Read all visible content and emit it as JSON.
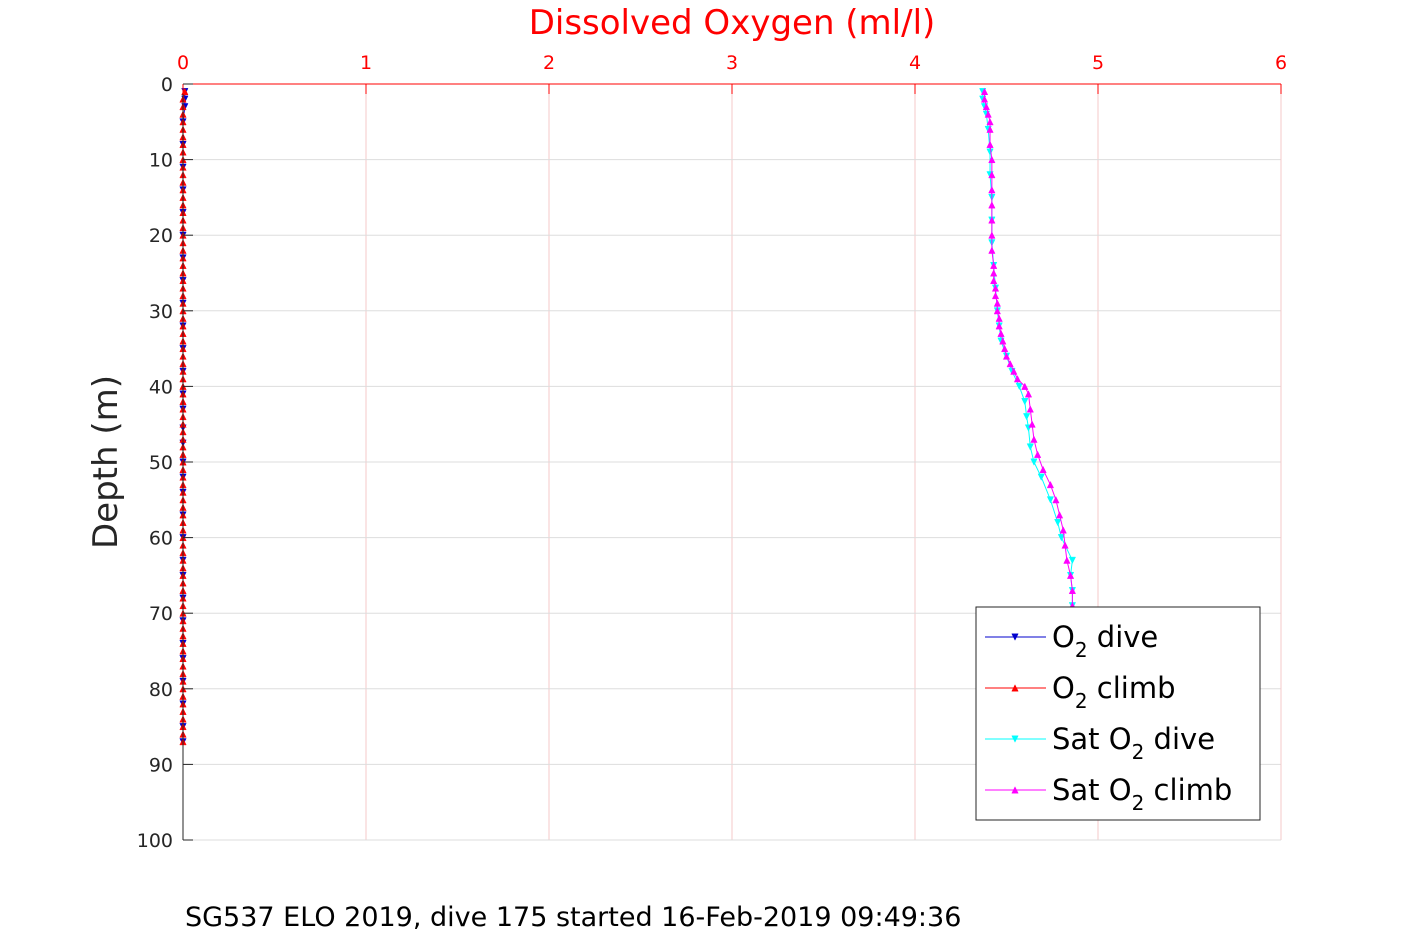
{
  "caption": "SG537 ELO 2019, dive 175 started 16-Feb-2019 09:49:36",
  "chart_data": {
    "type": "line",
    "title": "Dissolved Oxygen (ml/l)",
    "xlabel": "Dissolved Oxygen (ml/l)",
    "ylabel": "Depth (m)",
    "xlim": [
      0,
      6
    ],
    "ylim": [
      0,
      100
    ],
    "y_reversed": true,
    "x_axis_position": "top",
    "grid": true,
    "x_ticks": [
      "0",
      "1",
      "2",
      "3",
      "4",
      "5",
      "6"
    ],
    "y_ticks": [
      "0",
      "10",
      "20",
      "30",
      "40",
      "50",
      "60",
      "70",
      "80",
      "90",
      "100"
    ],
    "legend_position": "lower-right",
    "series": [
      {
        "name": "O2 dive",
        "legend": {
          "main": "O",
          "sub": "2",
          "rest": " dive"
        },
        "color": "#0000cd",
        "marker": "triangle-down",
        "points": [
          [
            0.01,
            1
          ],
          [
            0.01,
            2
          ],
          [
            0.01,
            3
          ],
          [
            0.0,
            5
          ],
          [
            0.0,
            8
          ],
          [
            0.0,
            11
          ],
          [
            0.0,
            14
          ],
          [
            0.0,
            17
          ],
          [
            0.0,
            20
          ],
          [
            0.0,
            23
          ],
          [
            0.0,
            26
          ],
          [
            0.0,
            29
          ],
          [
            0.0,
            32
          ],
          [
            0.0,
            35
          ],
          [
            0.0,
            38
          ],
          [
            0.0,
            41
          ],
          [
            0.0,
            43
          ],
          [
            0.0,
            45.5
          ],
          [
            0.0,
            47.5
          ],
          [
            0.0,
            50
          ],
          [
            0.0,
            52
          ],
          [
            0.0,
            54
          ],
          [
            0.0,
            57
          ],
          [
            0.0,
            60
          ],
          [
            0.0,
            63
          ],
          [
            0.0,
            65
          ],
          [
            0.0,
            68
          ],
          [
            0.0,
            71
          ],
          [
            0.0,
            74
          ],
          [
            0.0,
            76
          ],
          [
            0.0,
            79
          ],
          [
            0.0,
            82
          ],
          [
            0.0,
            85
          ],
          [
            0.0,
            87
          ]
        ]
      },
      {
        "name": "O2 climb",
        "legend": {
          "main": "O",
          "sub": "2",
          "rest": " climb"
        },
        "color": "#ff0000",
        "marker": "triangle-up",
        "points": [
          [
            0.0,
            87
          ],
          [
            0.0,
            86
          ],
          [
            0.0,
            85
          ],
          [
            0.0,
            84
          ],
          [
            0.0,
            83
          ],
          [
            0.0,
            82
          ],
          [
            0.0,
            81
          ],
          [
            0.0,
            80
          ],
          [
            0.0,
            79
          ],
          [
            0.0,
            78
          ],
          [
            0.0,
            77
          ],
          [
            0.0,
            76
          ],
          [
            0.0,
            75
          ],
          [
            0.0,
            74
          ],
          [
            0.0,
            73
          ],
          [
            0.0,
            72
          ],
          [
            0.0,
            71
          ],
          [
            0.0,
            70
          ],
          [
            0.0,
            69
          ],
          [
            0.0,
            68
          ],
          [
            0.0,
            67
          ],
          [
            0.0,
            66
          ],
          [
            0.0,
            65
          ],
          [
            0.0,
            64
          ],
          [
            0.0,
            63
          ],
          [
            0.0,
            62
          ],
          [
            0.0,
            61
          ],
          [
            0.0,
            60
          ],
          [
            0.0,
            59
          ],
          [
            0.0,
            58
          ],
          [
            0.0,
            57
          ],
          [
            0.0,
            56
          ],
          [
            0.0,
            55
          ],
          [
            0.0,
            54
          ],
          [
            0.0,
            53
          ],
          [
            0.0,
            52
          ],
          [
            0.0,
            51
          ],
          [
            0.0,
            50
          ],
          [
            0.0,
            49
          ],
          [
            0.0,
            48
          ],
          [
            0.0,
            47
          ],
          [
            0.0,
            46
          ],
          [
            0.0,
            45
          ],
          [
            0.0,
            44
          ],
          [
            0.0,
            43
          ],
          [
            0.0,
            42
          ],
          [
            0.0,
            41
          ],
          [
            0.0,
            40
          ],
          [
            0.0,
            39
          ],
          [
            0.0,
            38
          ],
          [
            0.0,
            37
          ],
          [
            0.0,
            36
          ],
          [
            0.0,
            35
          ],
          [
            0.0,
            34
          ],
          [
            0.0,
            33
          ],
          [
            0.0,
            32
          ],
          [
            0.0,
            31
          ],
          [
            0.0,
            30
          ],
          [
            0.0,
            29
          ],
          [
            0.0,
            28
          ],
          [
            0.0,
            27
          ],
          [
            0.0,
            26
          ],
          [
            0.0,
            25
          ],
          [
            0.0,
            24
          ],
          [
            0.0,
            23
          ],
          [
            0.0,
            22
          ],
          [
            0.0,
            21
          ],
          [
            0.0,
            20
          ],
          [
            0.0,
            19
          ],
          [
            0.0,
            18
          ],
          [
            0.0,
            17
          ],
          [
            0.0,
            16
          ],
          [
            0.0,
            15
          ],
          [
            0.0,
            14
          ],
          [
            0.0,
            13
          ],
          [
            0.0,
            12
          ],
          [
            0.0,
            11
          ],
          [
            0.0,
            10
          ],
          [
            0.0,
            9
          ],
          [
            0.0,
            8
          ],
          [
            0.0,
            7
          ],
          [
            0.0,
            6
          ],
          [
            0.0,
            5
          ],
          [
            0.0,
            4
          ],
          [
            0.0,
            3
          ],
          [
            0.0,
            2
          ],
          [
            0.01,
            1
          ]
        ]
      },
      {
        "name": "Sat O2 dive",
        "legend": {
          "main": "Sat O",
          "sub": "2",
          "rest": " dive"
        },
        "color": "#00ffff",
        "marker": "triangle-down",
        "points": [
          [
            4.37,
            1
          ],
          [
            4.37,
            2
          ],
          [
            4.38,
            3
          ],
          [
            4.39,
            4
          ],
          [
            4.4,
            6
          ],
          [
            4.41,
            9
          ],
          [
            4.41,
            12
          ],
          [
            4.42,
            15
          ],
          [
            4.42,
            18
          ],
          [
            4.42,
            21
          ],
          [
            4.43,
            24
          ],
          [
            4.44,
            27
          ],
          [
            4.45,
            30
          ],
          [
            4.46,
            32
          ],
          [
            4.47,
            34
          ],
          [
            4.5,
            36
          ],
          [
            4.53,
            38
          ],
          [
            4.57,
            40
          ],
          [
            4.6,
            42
          ],
          [
            4.61,
            44
          ],
          [
            4.62,
            45.5
          ],
          [
            4.63,
            48
          ],
          [
            4.65,
            50
          ],
          [
            4.69,
            52
          ],
          [
            4.74,
            55
          ],
          [
            4.78,
            58
          ],
          [
            4.8,
            60
          ],
          [
            4.86,
            63
          ],
          [
            4.85,
            65
          ],
          [
            4.86,
            67
          ],
          [
            4.86,
            69
          ]
        ]
      },
      {
        "name": "Sat O2 climb",
        "legend": {
          "main": "Sat O",
          "sub": "2",
          "rest": " climb"
        },
        "color": "#ff00ff",
        "marker": "triangle-up",
        "points": [
          [
            4.86,
            69
          ],
          [
            4.86,
            67
          ],
          [
            4.85,
            65
          ],
          [
            4.83,
            63
          ],
          [
            4.82,
            61
          ],
          [
            4.81,
            59
          ],
          [
            4.79,
            57
          ],
          [
            4.77,
            55
          ],
          [
            4.74,
            53
          ],
          [
            4.7,
            51
          ],
          [
            4.67,
            49
          ],
          [
            4.65,
            47
          ],
          [
            4.64,
            45
          ],
          [
            4.63,
            43
          ],
          [
            4.62,
            41
          ],
          [
            4.6,
            40
          ],
          [
            4.56,
            39
          ],
          [
            4.54,
            38
          ],
          [
            4.52,
            37
          ],
          [
            4.5,
            36
          ],
          [
            4.49,
            35
          ],
          [
            4.48,
            34
          ],
          [
            4.47,
            33
          ],
          [
            4.46,
            32
          ],
          [
            4.46,
            31
          ],
          [
            4.45,
            30
          ],
          [
            4.45,
            29
          ],
          [
            4.44,
            28
          ],
          [
            4.44,
            27
          ],
          [
            4.43,
            26
          ],
          [
            4.43,
            25
          ],
          [
            4.43,
            24
          ],
          [
            4.42,
            22
          ],
          [
            4.42,
            20
          ],
          [
            4.42,
            18
          ],
          [
            4.42,
            16
          ],
          [
            4.42,
            14
          ],
          [
            4.42,
            12
          ],
          [
            4.42,
            10
          ],
          [
            4.41,
            8
          ],
          [
            4.41,
            6
          ],
          [
            4.41,
            5
          ],
          [
            4.4,
            4
          ],
          [
            4.39,
            3
          ],
          [
            4.38,
            2
          ],
          [
            4.38,
            1
          ]
        ]
      }
    ]
  }
}
